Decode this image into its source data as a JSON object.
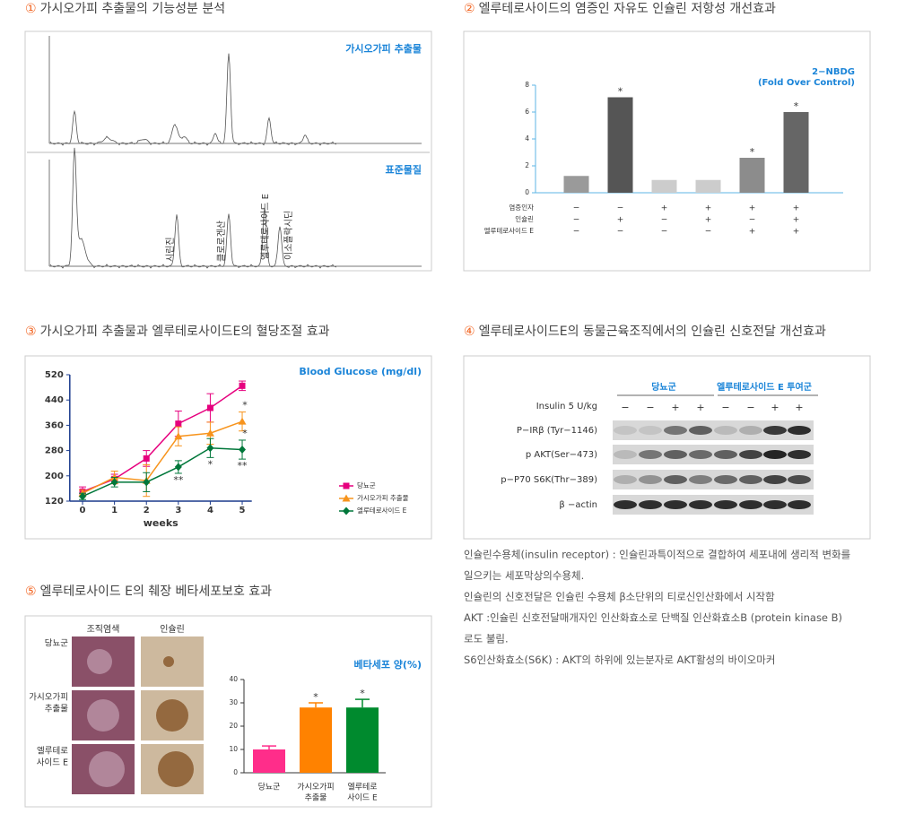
{
  "sections": [
    {
      "number": "①",
      "title": "가시오가피 추출물의 기능성분 분석"
    },
    {
      "number": "②",
      "title": "엘루테로사이드의 염증인 자유도 인슐린 저항성 개선효과"
    },
    {
      "number": "③",
      "title": "가시오가피 추출물과 엘루테로사이드E의 혈당조절 효과"
    },
    {
      "number": "④",
      "title": "엘루테로사이드E의 동물근육조직에서의 인슐린 신호전달 개선효과"
    },
    {
      "number": "⑤",
      "title": "엘루테로사이드 E의 췌장 베타세포보호 효과"
    }
  ],
  "chromatogram": {
    "labels": [
      "가시오가피 추출물",
      "표준물질"
    ],
    "peaks": [
      "시린진",
      "클로로겐산",
      "엘루테로사이드 E",
      "이소플락시딘"
    ]
  },
  "chart_data": [
    {
      "type": "bar",
      "title": [
        "2−NBDG",
        "(Fold Over Control)"
      ],
      "values": [
        1.25,
        7.1,
        0.95,
        0.95,
        2.6,
        6.0
      ],
      "colors": [
        "#9a9a9a",
        "#555555",
        "#cccccc",
        "#cccccc",
        "#8c8c8c",
        "#666666"
      ],
      "significance": [
        null,
        "*",
        null,
        null,
        "*",
        "*"
      ],
      "treatments": [
        {
          "name": "염증인자",
          "values": [
            "−",
            "−",
            "+",
            "+",
            "+",
            "+"
          ]
        },
        {
          "name": "인슐린",
          "values": [
            "−",
            "+",
            "−",
            "+",
            "−",
            "+"
          ]
        },
        {
          "name": "엘루테로사이드 E",
          "values": [
            "−",
            "−",
            "−",
            "−",
            "+",
            "+"
          ]
        }
      ],
      "ylim": [
        0,
        8
      ],
      "yticks": [
        0,
        2,
        4,
        6,
        8
      ]
    },
    {
      "type": "line",
      "title": "Blood Glucose (mg/dl)",
      "xlabel": "weeks",
      "x": [
        0,
        1,
        2,
        3,
        4,
        5
      ],
      "xlim": [
        -0.4,
        5.3
      ],
      "xticks": [
        0,
        1,
        2,
        3,
        4,
        5
      ],
      "ylim": [
        120,
        520
      ],
      "yticks": [
        120,
        200,
        280,
        360,
        440,
        520
      ],
      "legend": "lower right",
      "series": [
        {
          "name": "당뇨군",
          "color": "#e6007e",
          "marker": "square",
          "values": [
            150,
            190,
            255,
            365,
            415,
            485
          ],
          "errors": [
            15,
            15,
            25,
            40,
            45,
            15
          ]
        },
        {
          "name": "가시오가피 추출물",
          "color": "#f7941d",
          "marker": "triangle",
          "values": [
            145,
            195,
            185,
            325,
            335,
            372
          ],
          "errors": [
            10,
            20,
            50,
            30,
            35,
            30
          ]
        },
        {
          "name": "엘루테로사이드 E",
          "color": "#00773a",
          "marker": "diamond",
          "values": [
            135,
            180,
            180,
            228,
            288,
            283
          ],
          "errors": [
            10,
            15,
            30,
            20,
            30,
            30
          ]
        }
      ],
      "annotations": [
        {
          "series": 1,
          "index": 5,
          "text": "*",
          "position": "above"
        },
        {
          "series": 2,
          "index": 3,
          "text": "**",
          "position": "below"
        },
        {
          "series": 2,
          "index": 4,
          "text": "*",
          "position": "below"
        },
        {
          "series": 2,
          "index": 5,
          "text": "*",
          "position": "above"
        },
        {
          "series": 2,
          "index": 5,
          "text": "**",
          "position": "below"
        }
      ]
    },
    {
      "type": "bar",
      "title": "베타세포 양(%)",
      "categories": [
        [
          "당뇨군"
        ],
        [
          "가시오가피",
          "추출물"
        ],
        [
          "엘루테로",
          "사이드 E"
        ]
      ],
      "values": [
        10,
        28,
        28
      ],
      "errors": [
        1.5,
        2,
        3.5
      ],
      "colors": [
        "#ff2d8a",
        "#ff8200",
        "#008a2e"
      ],
      "significance": [
        null,
        "*",
        "*"
      ],
      "ylim": [
        0,
        40
      ],
      "yticks": [
        0,
        10,
        20,
        30,
        40
      ]
    }
  ],
  "western_blot": {
    "groups": [
      "당뇨군",
      "엘루테로사이드 E 투여군"
    ],
    "treatment": {
      "name": "Insulin 5 U/kg",
      "values": [
        "−",
        "−",
        "+",
        "+",
        "−",
        "−",
        "+",
        "+"
      ]
    },
    "rows": [
      "P−IRβ (Tyr−1146)",
      "p AKT(Ser−473)",
      "p−P70 S6K(Thr−389)",
      "β −actin"
    ]
  },
  "histology": {
    "columns": [
      "조직염색",
      "인슐린"
    ],
    "rows": [
      [
        "당뇨군"
      ],
      [
        "가시오가피",
        "추출물"
      ],
      [
        "엘루테로",
        "사이드 E"
      ]
    ]
  },
  "notes": [
    "인슐린수용체(insulin receptor) : 인슐린과특이적으로 결합하여 세포내에 생리적 변화를",
    "일으키는 세포막상의수용체.",
    "인슐린의 신호전달은 인슐린 수용체 β소단위의 티로신인산화에서 시작함",
    "AKT :인슐린 신호전달매개자인 인산화효소로 단백질 인산화효소B (protein kinase B)",
    "로도 불림.",
    "S6인산화효소(S6K) : AKT의 하위에 있는분자로 AKT활성의 바이오마커"
  ]
}
